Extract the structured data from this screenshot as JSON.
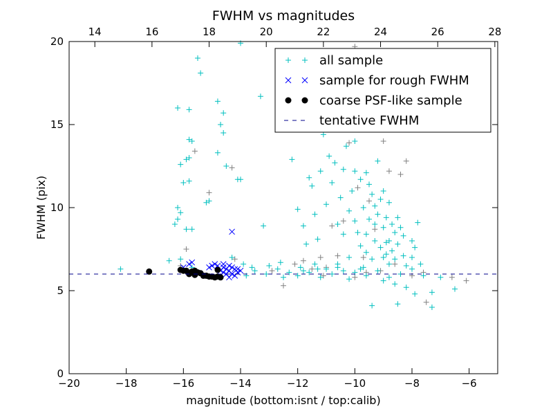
{
  "chart_data": {
    "type": "scatter",
    "title": "FWHM vs magnitudes",
    "xlabel": "magnitude (bottom:isnt / top:calib)",
    "ylabel": "FWHM (pix)",
    "xlim": [
      -20,
      -5
    ],
    "ylim": [
      0,
      20
    ],
    "top_xlim": [
      13.1,
      28.1
    ],
    "x_ticks": [
      -20,
      -18,
      -16,
      -14,
      -12,
      -10,
      -8,
      -6
    ],
    "x_tick_labels": [
      "−20",
      "−18",
      "−16",
      "−14",
      "−12",
      "−10",
      "−8",
      "−6"
    ],
    "top_ticks": [
      14,
      16,
      18,
      20,
      22,
      24,
      26,
      28
    ],
    "top_tick_labels": [
      "14",
      "16",
      "18",
      "20",
      "22",
      "24",
      "26",
      "28"
    ],
    "y_ticks": [
      0,
      5,
      10,
      15,
      20
    ],
    "y_tick_labels": [
      "0",
      "5",
      "10",
      "15",
      "20"
    ],
    "grid": false,
    "legend_position": "top-right",
    "tentative_fwhm": 6.0,
    "colors": {
      "all": "#00bfbf",
      "gray": "#808080",
      "rough": "#0000ff",
      "coarse": "#000000",
      "tentative": "#00008b"
    },
    "legend": [
      "all sample",
      "sample for rough FWHM",
      "coarse PSF-like sample",
      "tentative FWHM"
    ],
    "series": [
      {
        "name": "gray sample",
        "marker": "+",
        "points": [
          [
            -16.1,
            6.5
          ],
          [
            -15.9,
            7.5
          ],
          [
            -15.6,
            13.4
          ],
          [
            -15.1,
            10.9
          ],
          [
            -14.3,
            12.4
          ],
          [
            -14.2,
            6.9
          ],
          [
            -12.9,
            6.2
          ],
          [
            -12.5,
            5.3
          ],
          [
            -12.1,
            6.6
          ],
          [
            -11.8,
            6.8
          ],
          [
            -11.5,
            6.3
          ],
          [
            -11.2,
            7.0
          ],
          [
            -11.0,
            6.4
          ],
          [
            -10.8,
            8.9
          ],
          [
            -10.6,
            7.1
          ],
          [
            -10.4,
            9.2
          ],
          [
            -10.2,
            13.9
          ],
          [
            -10.0,
            19.7
          ],
          [
            -9.9,
            11.2
          ],
          [
            -9.7,
            7.0
          ],
          [
            -9.5,
            10.4
          ],
          [
            -9.3,
            8.7
          ],
          [
            -9.1,
            6.2
          ],
          [
            -9.0,
            14.0
          ],
          [
            -8.8,
            12.2
          ],
          [
            -8.6,
            6.6
          ],
          [
            -8.4,
            12.0
          ],
          [
            -8.2,
            12.8
          ],
          [
            -8.0,
            5.9
          ],
          [
            -7.6,
            6.1
          ],
          [
            -7.5,
            4.3
          ],
          [
            -6.6,
            5.8
          ],
          [
            -6.1,
            5.6
          ],
          [
            -10.0,
            5.8
          ],
          [
            -11.1,
            5.9
          ],
          [
            -9.6,
            6.1
          ]
        ]
      },
      {
        "name": "all sample",
        "marker": "+",
        "points": [
          [
            -18.2,
            6.3
          ],
          [
            -16.2,
            16.0
          ],
          [
            -15.8,
            15.9
          ],
          [
            -15.5,
            19.0
          ],
          [
            -15.4,
            18.1
          ],
          [
            -14.8,
            16.4
          ],
          [
            -14.6,
            15.7
          ],
          [
            -14.7,
            15.0
          ],
          [
            -14.6,
            14.5
          ],
          [
            -15.8,
            14.1
          ],
          [
            -15.7,
            14.0
          ],
          [
            -15.8,
            13.0
          ],
          [
            -15.9,
            12.9
          ],
          [
            -16.1,
            12.6
          ],
          [
            -16.0,
            11.5
          ],
          [
            -15.8,
            11.6
          ],
          [
            -15.2,
            10.3
          ],
          [
            -15.1,
            10.4
          ],
          [
            -16.2,
            10.0
          ],
          [
            -16.1,
            9.7
          ],
          [
            -16.2,
            9.3
          ],
          [
            -16.3,
            9.0
          ],
          [
            -15.9,
            8.7
          ],
          [
            -15.7,
            8.7
          ],
          [
            -14.8,
            13.3
          ],
          [
            -14.5,
            12.5
          ],
          [
            -14.0,
            11.7
          ],
          [
            -14.1,
            11.7
          ],
          [
            -14.0,
            19.9
          ],
          [
            -13.3,
            16.7
          ],
          [
            -13.2,
            8.9
          ],
          [
            -16.1,
            6.9
          ],
          [
            -16.5,
            6.8
          ],
          [
            -15.7,
            6.4
          ],
          [
            -14.3,
            7.0
          ],
          [
            -12.2,
            12.9
          ],
          [
            -12.0,
            9.9
          ],
          [
            -11.8,
            8.9
          ],
          [
            -11.7,
            7.8
          ],
          [
            -11.6,
            11.8
          ],
          [
            -11.5,
            11.3
          ],
          [
            -11.4,
            9.6
          ],
          [
            -11.3,
            8.1
          ],
          [
            -11.2,
            12.2
          ],
          [
            -11.1,
            14.4
          ],
          [
            -11.0,
            10.2
          ],
          [
            -10.9,
            13.1
          ],
          [
            -10.8,
            11.5
          ],
          [
            -10.7,
            12.7
          ],
          [
            -10.6,
            9.0
          ],
          [
            -10.5,
            10.6
          ],
          [
            -10.4,
            12.3
          ],
          [
            -10.3,
            13.7
          ],
          [
            -10.2,
            9.8
          ],
          [
            -10.1,
            11.0
          ],
          [
            -10.0,
            14.0
          ],
          [
            -10.0,
            12.2
          ],
          [
            -9.9,
            8.5
          ],
          [
            -9.8,
            11.7
          ],
          [
            -9.7,
            10.0
          ],
          [
            -9.6,
            12.1
          ],
          [
            -9.5,
            9.3
          ],
          [
            -9.5,
            11.4
          ],
          [
            -9.4,
            10.8
          ],
          [
            -9.3,
            10.1
          ],
          [
            -9.3,
            8.0
          ],
          [
            -9.2,
            12.8
          ],
          [
            -9.2,
            9.6
          ],
          [
            -9.1,
            10.5
          ],
          [
            -9.1,
            7.6
          ],
          [
            -9.0,
            11.0
          ],
          [
            -9.0,
            8.8
          ],
          [
            -8.9,
            9.4
          ],
          [
            -8.9,
            7.2
          ],
          [
            -8.8,
            10.3
          ],
          [
            -8.8,
            8.0
          ],
          [
            -8.7,
            9.0
          ],
          [
            -8.7,
            7.4
          ],
          [
            -8.6,
            8.5
          ],
          [
            -8.6,
            6.9
          ],
          [
            -8.5,
            7.8
          ],
          [
            -8.4,
            8.8
          ],
          [
            -8.3,
            7.1
          ],
          [
            -8.2,
            6.5
          ],
          [
            -8.0,
            8.0
          ],
          [
            -7.8,
            9.1
          ],
          [
            -7.9,
            7.6
          ],
          [
            -9.4,
            4.1
          ],
          [
            -8.5,
            4.2
          ],
          [
            -7.9,
            4.8
          ],
          [
            -7.3,
            4.9
          ],
          [
            -7.3,
            4.0
          ],
          [
            -6.5,
            5.1
          ],
          [
            -7.0,
            5.8
          ],
          [
            -9.8,
            7.7
          ],
          [
            -10.2,
            7.0
          ],
          [
            -10.4,
            8.4
          ],
          [
            -9.6,
            7.3
          ],
          [
            -9.0,
            7.0
          ],
          [
            -8.8,
            6.6
          ],
          [
            -9.4,
            6.9
          ],
          [
            -9.7,
            6.4
          ],
          [
            -10.6,
            6.6
          ],
          [
            -11.0,
            6.3
          ],
          [
            -11.4,
            6.6
          ],
          [
            -11.9,
            6.4
          ],
          [
            -12.3,
            6.1
          ],
          [
            -12.7,
            6.3
          ],
          [
            -13.1,
            6.0
          ],
          [
            -13.5,
            6.2
          ],
          [
            -13.8,
            5.9
          ],
          [
            -13.0,
            6.5
          ],
          [
            -12.0,
            5.9
          ],
          [
            -11.6,
            6.1
          ],
          [
            -11.2,
            5.8
          ],
          [
            -10.8,
            6.0
          ],
          [
            -10.4,
            6.2
          ],
          [
            -10.0,
            6.1
          ],
          [
            -9.6,
            5.9
          ],
          [
            -9.2,
            6.2
          ],
          [
            -8.8,
            5.8
          ],
          [
            -8.4,
            6.0
          ],
          [
            -8.0,
            6.3
          ],
          [
            -7.6,
            5.9
          ],
          [
            -12.5,
            5.8
          ],
          [
            -13.6,
            6.4
          ],
          [
            -11.8,
            6.2
          ],
          [
            -10.2,
            5.7
          ],
          [
            -9.0,
            5.6
          ],
          [
            -8.6,
            5.4
          ],
          [
            -8.2,
            5.2
          ],
          [
            -9.8,
            6.3
          ],
          [
            -10.6,
            6.4
          ],
          [
            -11.3,
            6.3
          ],
          [
            -12.6,
            6.7
          ],
          [
            -13.9,
            6.6
          ],
          [
            -8.9,
            7.9
          ],
          [
            -9.3,
            9.0
          ],
          [
            -8.5,
            9.4
          ],
          [
            -9.6,
            8.4
          ],
          [
            -10.0,
            9.2
          ],
          [
            -8.3,
            8.3
          ],
          [
            -8.0,
            7.0
          ],
          [
            -7.7,
            6.6
          ]
        ]
      },
      {
        "name": "sample for rough FWHM",
        "marker": "x",
        "points": [
          [
            -14.3,
            8.55
          ],
          [
            -16.0,
            6.4
          ],
          [
            -15.8,
            6.6
          ],
          [
            -15.7,
            6.7
          ],
          [
            -15.0,
            6.5
          ],
          [
            -14.9,
            6.6
          ],
          [
            -14.6,
            6.4
          ],
          [
            -14.5,
            6.3
          ],
          [
            -14.4,
            6.2
          ],
          [
            -14.3,
            6.0
          ],
          [
            -14.2,
            6.3
          ],
          [
            -14.1,
            6.3
          ],
          [
            -14.4,
            6.5
          ],
          [
            -14.6,
            6.1
          ],
          [
            -14.2,
            5.9
          ],
          [
            -14.5,
            6.0
          ],
          [
            -14.1,
            6.1
          ],
          [
            -14.3,
            6.4
          ],
          [
            -14.7,
            6.2
          ],
          [
            -15.1,
            6.4
          ],
          [
            -14.8,
            6.5
          ],
          [
            -14.0,
            6.2
          ],
          [
            -14.4,
            5.8
          ],
          [
            -14.6,
            6.6
          ]
        ]
      },
      {
        "name": "coarse PSF-like sample",
        "marker": "o",
        "points": [
          [
            -17.2,
            6.15
          ],
          [
            -16.1,
            6.25
          ],
          [
            -15.9,
            6.2
          ],
          [
            -15.8,
            6.0
          ],
          [
            -15.7,
            6.15
          ],
          [
            -15.6,
            5.95
          ],
          [
            -15.5,
            6.1
          ],
          [
            -15.4,
            6.05
          ],
          [
            -15.3,
            5.9
          ],
          [
            -15.2,
            5.9
          ],
          [
            -15.1,
            5.85
          ],
          [
            -15.0,
            5.85
          ],
          [
            -14.9,
            5.8
          ],
          [
            -14.8,
            5.85
          ],
          [
            -14.8,
            6.25
          ],
          [
            -14.7,
            5.8
          ],
          [
            -15.6,
            6.2
          ],
          [
            -16.0,
            6.2
          ]
        ]
      }
    ]
  }
}
